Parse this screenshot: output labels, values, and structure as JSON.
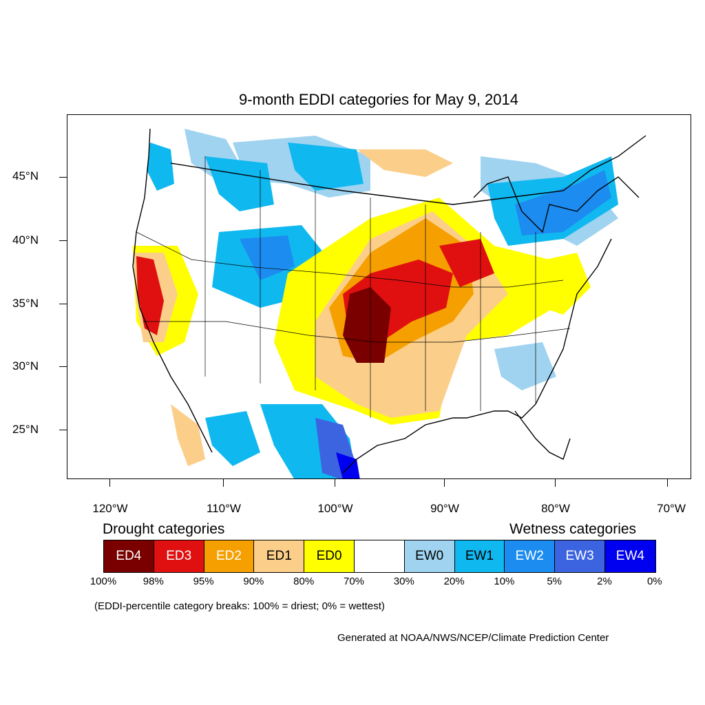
{
  "title": "9-month EDDI categories for May 9, 2014",
  "axes": {
    "lat_labels": [
      "45°N",
      "40°N",
      "35°N",
      "30°N",
      "25°N"
    ],
    "lon_labels": [
      "120°W",
      "110°W",
      "100°W",
      "90°W",
      "80°W",
      "70°W"
    ]
  },
  "legend": {
    "drought_title": "Drought categories",
    "wetness_title": "Wetness categories",
    "categories": [
      {
        "label": "ED4",
        "color": "#7a0000",
        "text_color": "#ffffff"
      },
      {
        "label": "ED3",
        "color": "#e01010",
        "text_color": "#ffffff"
      },
      {
        "label": "ED2",
        "color": "#f5a000",
        "text_color": "#ffffff"
      },
      {
        "label": "ED1",
        "color": "#fbcf8a",
        "text_color": "#000000"
      },
      {
        "label": "ED0",
        "color": "#ffff00",
        "text_color": "#000000"
      },
      {
        "label": "",
        "color": "#ffffff",
        "text_color": "#000000"
      },
      {
        "label": "EW0",
        "color": "#9fd3f0",
        "text_color": "#000000"
      },
      {
        "label": "EW1",
        "color": "#10b8f0",
        "text_color": "#000000"
      },
      {
        "label": "EW2",
        "color": "#1c8cf0",
        "text_color": "#ffffff"
      },
      {
        "label": "EW3",
        "color": "#3c64e0",
        "text_color": "#ffffff"
      },
      {
        "label": "EW4",
        "color": "#0000f0",
        "text_color": "#ffffff"
      }
    ],
    "percentiles": [
      "100%",
      "98%",
      "95%",
      "90%",
      "80%",
      "70%",
      "30%",
      "20%",
      "10%",
      "5%",
      "2%",
      "0%"
    ]
  },
  "note": "(EDDI-percentile category breaks: 100% = driest; 0% = wettest)",
  "credit": "Generated at NOAA/NWS/NCEP/Climate Prediction Center"
}
